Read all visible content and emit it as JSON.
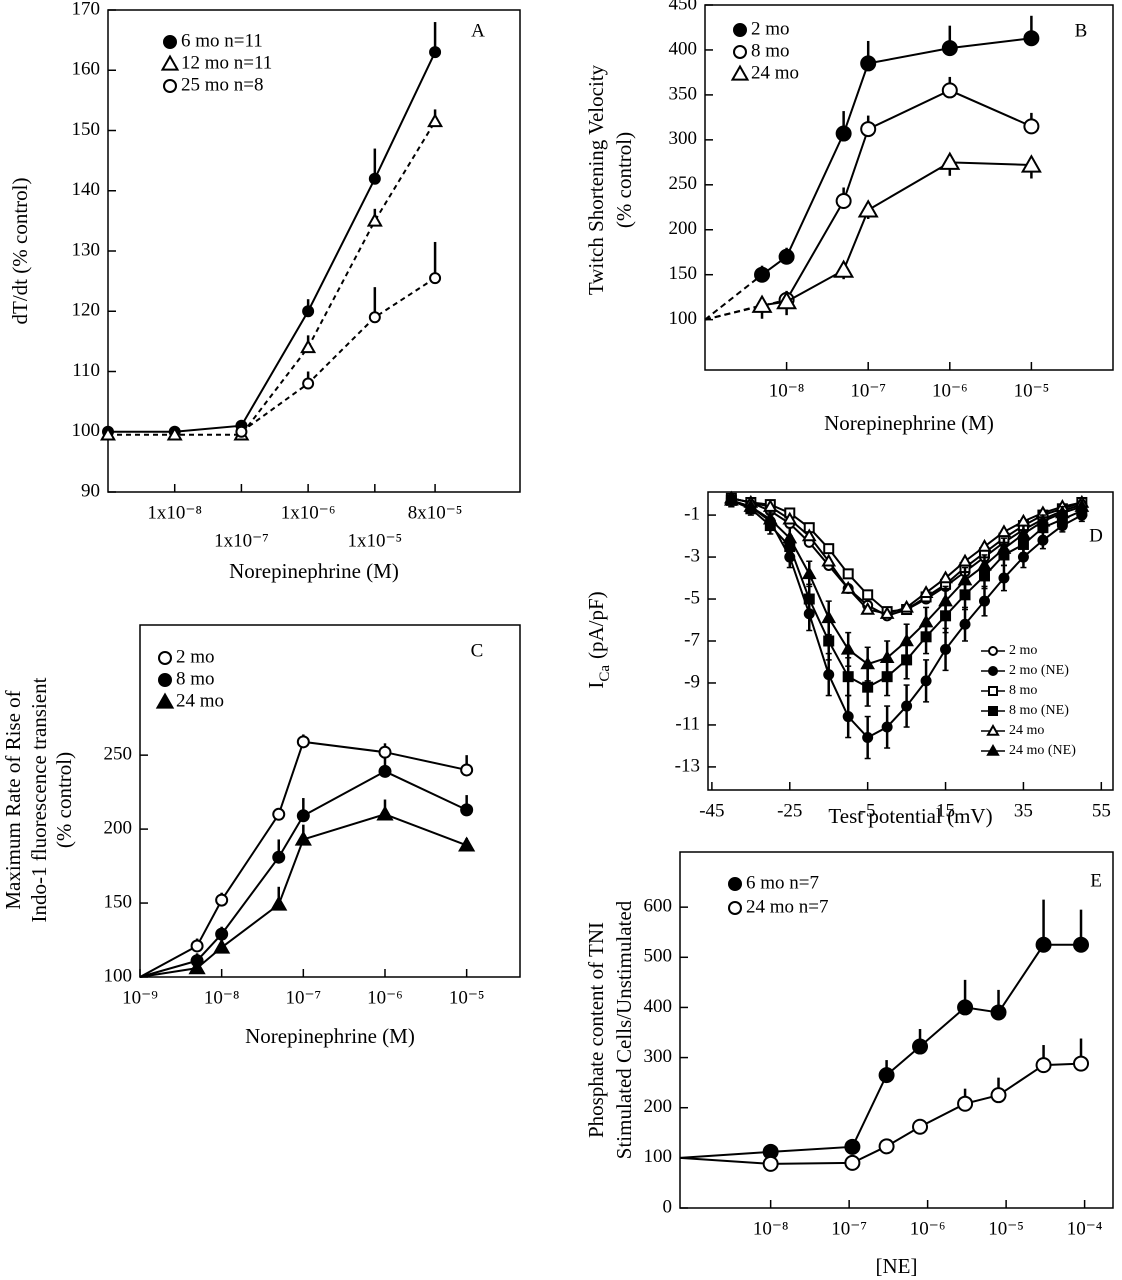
{
  "chart_data": [
    {
      "type": "line",
      "letter": "A",
      "xlabel": "Norepinephrine (M)",
      "ylabel": [
        "dT/dt (% control)"
      ],
      "xscale": "log",
      "xlim": [
        1e-09,
        0.0015
      ],
      "ylim": [
        90,
        170
      ],
      "yticks": [
        90,
        100,
        110,
        120,
        130,
        140,
        150,
        160,
        170
      ],
      "xticks": [
        {
          "value": 1e-08,
          "label": "1x10⁻⁸"
        },
        {
          "value": 1e-07,
          "label": "1x10⁻⁷"
        },
        {
          "value": 1e-06,
          "label": "1x10⁻⁶"
        },
        {
          "value": 1e-05,
          "label": "1x10⁻⁵"
        },
        {
          "value": 8e-05,
          "label": "8x10⁻⁵"
        }
      ],
      "legend": "upper left",
      "x": [
        1e-09,
        1e-08,
        1e-07,
        1e-06,
        1e-05,
        8e-05
      ],
      "series": [
        {
          "name": "6 mo n=11",
          "color": "#000000",
          "marker": "filled-circle",
          "dash": false,
          "values": [
            100,
            100,
            101,
            120,
            142,
            163
          ],
          "errors": [
            null,
            null,
            null,
            2,
            5,
            5
          ]
        },
        {
          "name": "12 mo n=11",
          "color": "#000000",
          "marker": "open-triangle",
          "dash": true,
          "values": [
            99.5,
            99.5,
            99.5,
            114,
            135,
            151.5
          ],
          "errors": [
            null,
            null,
            null,
            2,
            2,
            2
          ]
        },
        {
          "name": "25 mo n=8",
          "color": "#000000",
          "marker": "open-circle",
          "dash": true,
          "values": [
            null,
            null,
            100,
            108,
            119,
            125.5
          ],
          "errors": [
            null,
            null,
            null,
            2,
            5,
            6
          ]
        }
      ]
    },
    {
      "type": "line",
      "letter": "B",
      "xlabel": "Norepinephrine (M)",
      "ylabel": [
        "Twitch Shortening Velocity",
        "(% control)"
      ],
      "xscale": "log",
      "xlim": [
        1e-09,
        0.0001
      ],
      "ylim": [
        44,
        450
      ],
      "yticks": [
        100,
        150,
        200,
        250,
        300,
        350,
        400,
        450
      ],
      "xticks": [
        {
          "value": 1e-08,
          "label": "10⁻⁸"
        },
        {
          "value": 1e-07,
          "label": "10⁻⁷"
        },
        {
          "value": 1e-06,
          "label": "10⁻⁶"
        },
        {
          "value": 1e-05,
          "label": "10⁻⁵"
        }
      ],
      "legend": "upper left",
      "start_value": 100,
      "start_style": "dashed",
      "x": [
        5e-09,
        1e-08,
        5e-08,
        1e-07,
        1e-06,
        1e-05
      ],
      "series": [
        {
          "name": "2 mo",
          "color": "#000000",
          "marker": "filled-circle",
          "dash": false,
          "values": [
            150,
            170,
            307,
            385,
            402,
            413
          ],
          "errors": [
            10,
            10,
            25,
            25,
            25,
            25
          ]
        },
        {
          "name": "8 mo",
          "color": "#000000",
          "marker": "open-circle",
          "dash": false,
          "values": [
            null,
            122,
            232,
            312,
            355,
            315
          ],
          "errors": [
            null,
            10,
            15,
            15,
            15,
            15
          ]
        },
        {
          "name": "24 mo",
          "color": "#000000",
          "marker": "open-triangle",
          "dash": false,
          "values": [
            116,
            120,
            155,
            222,
            275,
            272
          ],
          "errors": [
            15,
            15,
            10,
            10,
            15,
            15
          ],
          "error_side": "down"
        }
      ]
    },
    {
      "type": "line",
      "letter": "C",
      "xlabel": "Norepinephrine (M)",
      "ylabel": [
        "Maximum Rate of Rise of",
        "Indo-1 fluorescence transient",
        "(% control)"
      ],
      "xscale": "log",
      "xlim": [
        1e-09,
        4.5e-05
      ],
      "ylim": [
        100,
        338
      ],
      "yticks": [
        100,
        150,
        200,
        250
      ],
      "xticks": [
        {
          "value": 1e-09,
          "label": "10⁻⁹"
        },
        {
          "value": 1e-08,
          "label": "10⁻⁸"
        },
        {
          "value": 1e-07,
          "label": "10⁻⁷"
        },
        {
          "value": 1e-06,
          "label": "10⁻⁶"
        },
        {
          "value": 1e-05,
          "label": "10⁻⁵"
        }
      ],
      "legend": "upper left",
      "start_value": 100,
      "start_style": "solid",
      "x": [
        5e-09,
        1e-08,
        5e-08,
        1e-07,
        1e-06,
        1e-05
      ],
      "series": [
        {
          "name": "2 mo",
          "color": "#000000",
          "marker": "open-circle",
          "dash": false,
          "values": [
            121,
            152,
            210,
            259,
            252,
            240
          ],
          "errors": [
            5,
            5,
            3,
            5,
            6,
            10
          ]
        },
        {
          "name": "8 mo",
          "color": "#000000",
          "marker": "filled-circle",
          "dash": false,
          "values": [
            111,
            129,
            181,
            209,
            239,
            213
          ],
          "errors": [
            5,
            5,
            12,
            12,
            10,
            10
          ]
        },
        {
          "name": "24 mo",
          "color": "#000000",
          "marker": "filled-triangle",
          "dash": false,
          "values": [
            106,
            120,
            149,
            193,
            210,
            189
          ],
          "errors": [
            null,
            12,
            12,
            10,
            10,
            5
          ]
        }
      ]
    },
    {
      "type": "line",
      "letter": "D",
      "xlabel": "Test potential (mV)",
      "ylabel_parts": [
        "I",
        "Ca",
        "(pA/pF)"
      ],
      "xscale": "linear",
      "xlim": [
        -46,
        58
      ],
      "ylim": [
        -14.1,
        0.1
      ],
      "yticks": [
        -1,
        -3,
        -5,
        -7,
        -9,
        -11,
        -13
      ],
      "xticks": [
        -45,
        -25,
        -5,
        15,
        35,
        55
      ],
      "legend": "center right",
      "error_side": "both",
      "x": [
        -40,
        -35,
        -30,
        -25,
        -20,
        -15,
        -10,
        -5,
        0,
        5,
        10,
        15,
        20,
        25,
        30,
        35,
        40,
        45,
        50
      ],
      "series": [
        {
          "name": "2 mo",
          "color": "#000000",
          "marker": "open-circle",
          "dash": false,
          "values": [
            -0.2,
            -0.4,
            -0.8,
            -1.4,
            -2.3,
            -3.4,
            -4.5,
            -5.3,
            -5.8,
            -5.5,
            -5.0,
            -4.4,
            -3.7,
            -3.0,
            -2.3,
            -1.7,
            -1.2,
            -0.8,
            -0.5
          ]
        },
        {
          "name": "2 mo (NE)",
          "color": "#000000",
          "marker": "filled-circle",
          "dash": false,
          "values": [
            -0.3,
            -0.6,
            -1.3,
            -3.0,
            -5.7,
            -8.6,
            -10.6,
            -11.6,
            -11.1,
            -10.1,
            -8.9,
            -7.4,
            -6.2,
            -5.1,
            -4.0,
            -3.0,
            -2.2,
            -1.5,
            -1.0
          ],
          "errors": [
            0.3,
            0.3,
            0.4,
            0.5,
            0.8,
            1,
            1,
            1,
            1,
            1,
            1,
            1,
            0.8,
            0.7,
            0.6,
            0.5,
            0.4,
            0.3,
            0.3
          ]
        },
        {
          "name": "8 mo",
          "color": "#000000",
          "marker": "open-square",
          "dash": false,
          "values": [
            -0.2,
            -0.4,
            -0.5,
            -0.9,
            -1.6,
            -2.6,
            -3.8,
            -4.8,
            -5.6,
            -5.5,
            -4.9,
            -4.3,
            -3.5,
            -2.8,
            -2.1,
            -1.5,
            -1.0,
            -0.7,
            -0.4
          ]
        },
        {
          "name": "8 mo (NE)",
          "color": "#000000",
          "marker": "filled-square",
          "dash": false,
          "values": [
            -0.3,
            -0.7,
            -1.5,
            -2.5,
            -5.0,
            -7.0,
            -8.7,
            -9.2,
            -8.7,
            -7.9,
            -6.8,
            -5.8,
            -4.8,
            -3.9,
            -2.9,
            -2.4,
            -1.6,
            -1.2,
            -0.8
          ],
          "errors": [
            0.3,
            0.3,
            0.4,
            0.5,
            0.7,
            0.9,
            0.9,
            0.9,
            0.9,
            0.9,
            0.8,
            0.8,
            0.7,
            0.6,
            0.5,
            0.4,
            0.4,
            0.3,
            0.3
          ]
        },
        {
          "name": "24 mo",
          "color": "#000000",
          "marker": "open-triangle",
          "dash": false,
          "values": [
            -0.2,
            -0.4,
            -0.6,
            -1.2,
            -2.0,
            -3.2,
            -4.5,
            -5.5,
            -5.7,
            -5.4,
            -4.7,
            -4.0,
            -3.2,
            -2.5,
            -1.8,
            -1.3,
            -0.9,
            -0.6,
            -0.4
          ]
        },
        {
          "name": "24 mo (NE)",
          "color": "#000000",
          "marker": "filled-triangle",
          "dash": false,
          "values": [
            -0.3,
            -0.6,
            -1.2,
            -2.1,
            -3.8,
            -5.9,
            -7.4,
            -8.1,
            -7.8,
            -7.0,
            -6.1,
            -5.1,
            -4.1,
            -3.4,
            -2.6,
            -1.9,
            -1.3,
            -0.9,
            -0.6
          ],
          "errors": [
            0.3,
            0.3,
            0.4,
            0.5,
            0.6,
            0.8,
            0.8,
            0.8,
            0.8,
            0.8,
            0.7,
            0.7,
            0.6,
            0.5,
            0.5,
            0.4,
            0.3,
            0.3,
            0.3
          ]
        }
      ]
    },
    {
      "type": "line",
      "letter": "E",
      "xlabel": "[NE]",
      "ylabel": [
        "Phosphate content of TNI",
        "Stimulated Cells/Unstimulated"
      ],
      "xscale": "log",
      "xlim": [
        7e-10,
        0.00023
      ],
      "ylim": [
        0,
        710
      ],
      "yticks": [
        0,
        100,
        200,
        300,
        400,
        500,
        600
      ],
      "xticks": [
        {
          "value": 1e-08,
          "label": "10⁻⁸"
        },
        {
          "value": 1e-07,
          "label": "10⁻⁷"
        },
        {
          "value": 1e-06,
          "label": "10⁻⁶"
        },
        {
          "value": 1e-05,
          "label": "10⁻⁵"
        },
        {
          "value": 0.0001,
          "label": "10⁻⁴"
        }
      ],
      "legend": "upper left",
      "start_value": 100,
      "start_style": "solid",
      "x": [
        1e-08,
        1.1e-07,
        3e-07,
        8e-07,
        3e-06,
        8e-06,
        3e-05,
        9e-05
      ],
      "series": [
        {
          "name": "6 mo n=7",
          "color": "#000000",
          "marker": "filled-circle",
          "dash": false,
          "values": [
            112,
            122,
            265,
            322,
            400,
            390,
            525,
            525
          ],
          "errors": [
            null,
            null,
            30,
            35,
            55,
            45,
            90,
            70
          ]
        },
        {
          "name": "24 mo n=7",
          "color": "#000000",
          "marker": "open-circle",
          "dash": false,
          "values": [
            88,
            90,
            123,
            162,
            208,
            225,
            285,
            288
          ],
          "errors": [
            null,
            null,
            null,
            10,
            30,
            35,
            40,
            50
          ]
        }
      ]
    }
  ]
}
